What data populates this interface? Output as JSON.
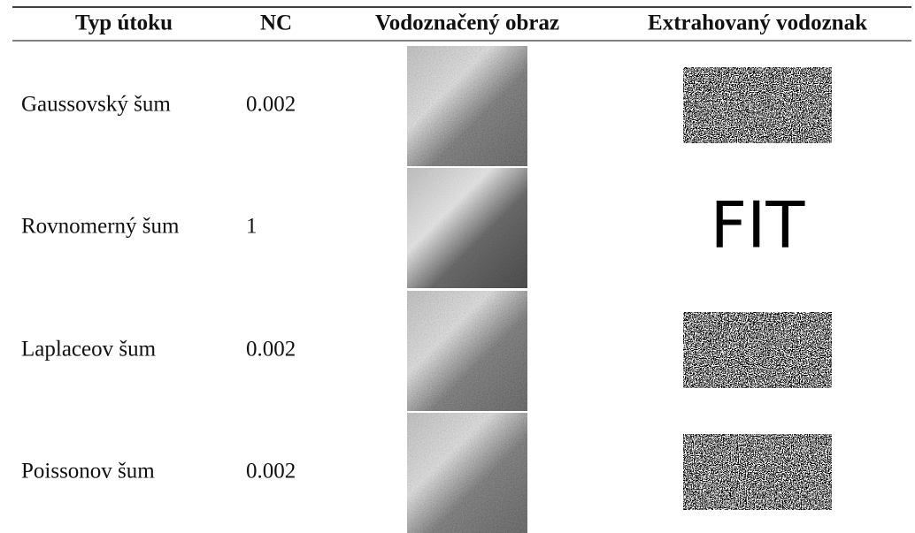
{
  "table": {
    "header": [
      "Typ útoku",
      "NC",
      "Vodoznačený obraz",
      "Extrahovaný vodoznak"
    ],
    "rows": [
      [
        "Gaussovský šum",
        0.002
      ],
      [
        "Rovnomerný šum",
        1
      ],
      [
        "Laplaceov šum",
        0.002
      ],
      [
        "Poissonov šum",
        0.002
      ]
    ],
    "extracted_text": "FIT"
  }
}
